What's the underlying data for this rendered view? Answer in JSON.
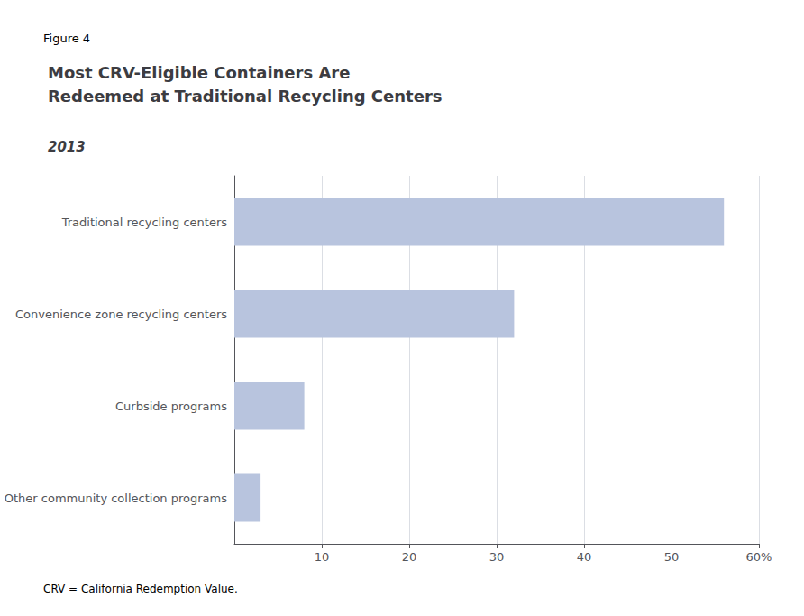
{
  "chart_data": {
    "type": "bar",
    "orientation": "horizontal",
    "figure_label": "Figure 4",
    "title": "Most CRV-Eligible Containers Are\nRedeemed at Traditional Recycling Centers",
    "subtitle": "2013",
    "categories": [
      "Traditional recycling centers",
      "Convenience zone recycling centers",
      "Curbside programs",
      "Other community collection programs"
    ],
    "values": [
      56,
      32,
      8,
      3
    ],
    "color": "#b8c4de",
    "xlim": [
      0,
      60
    ],
    "xticks": [
      10,
      20,
      30,
      40,
      50,
      {
        "value": 60,
        "label": "60%"
      }
    ],
    "grid": true,
    "footnote": "CRV = California Redemption Value."
  }
}
